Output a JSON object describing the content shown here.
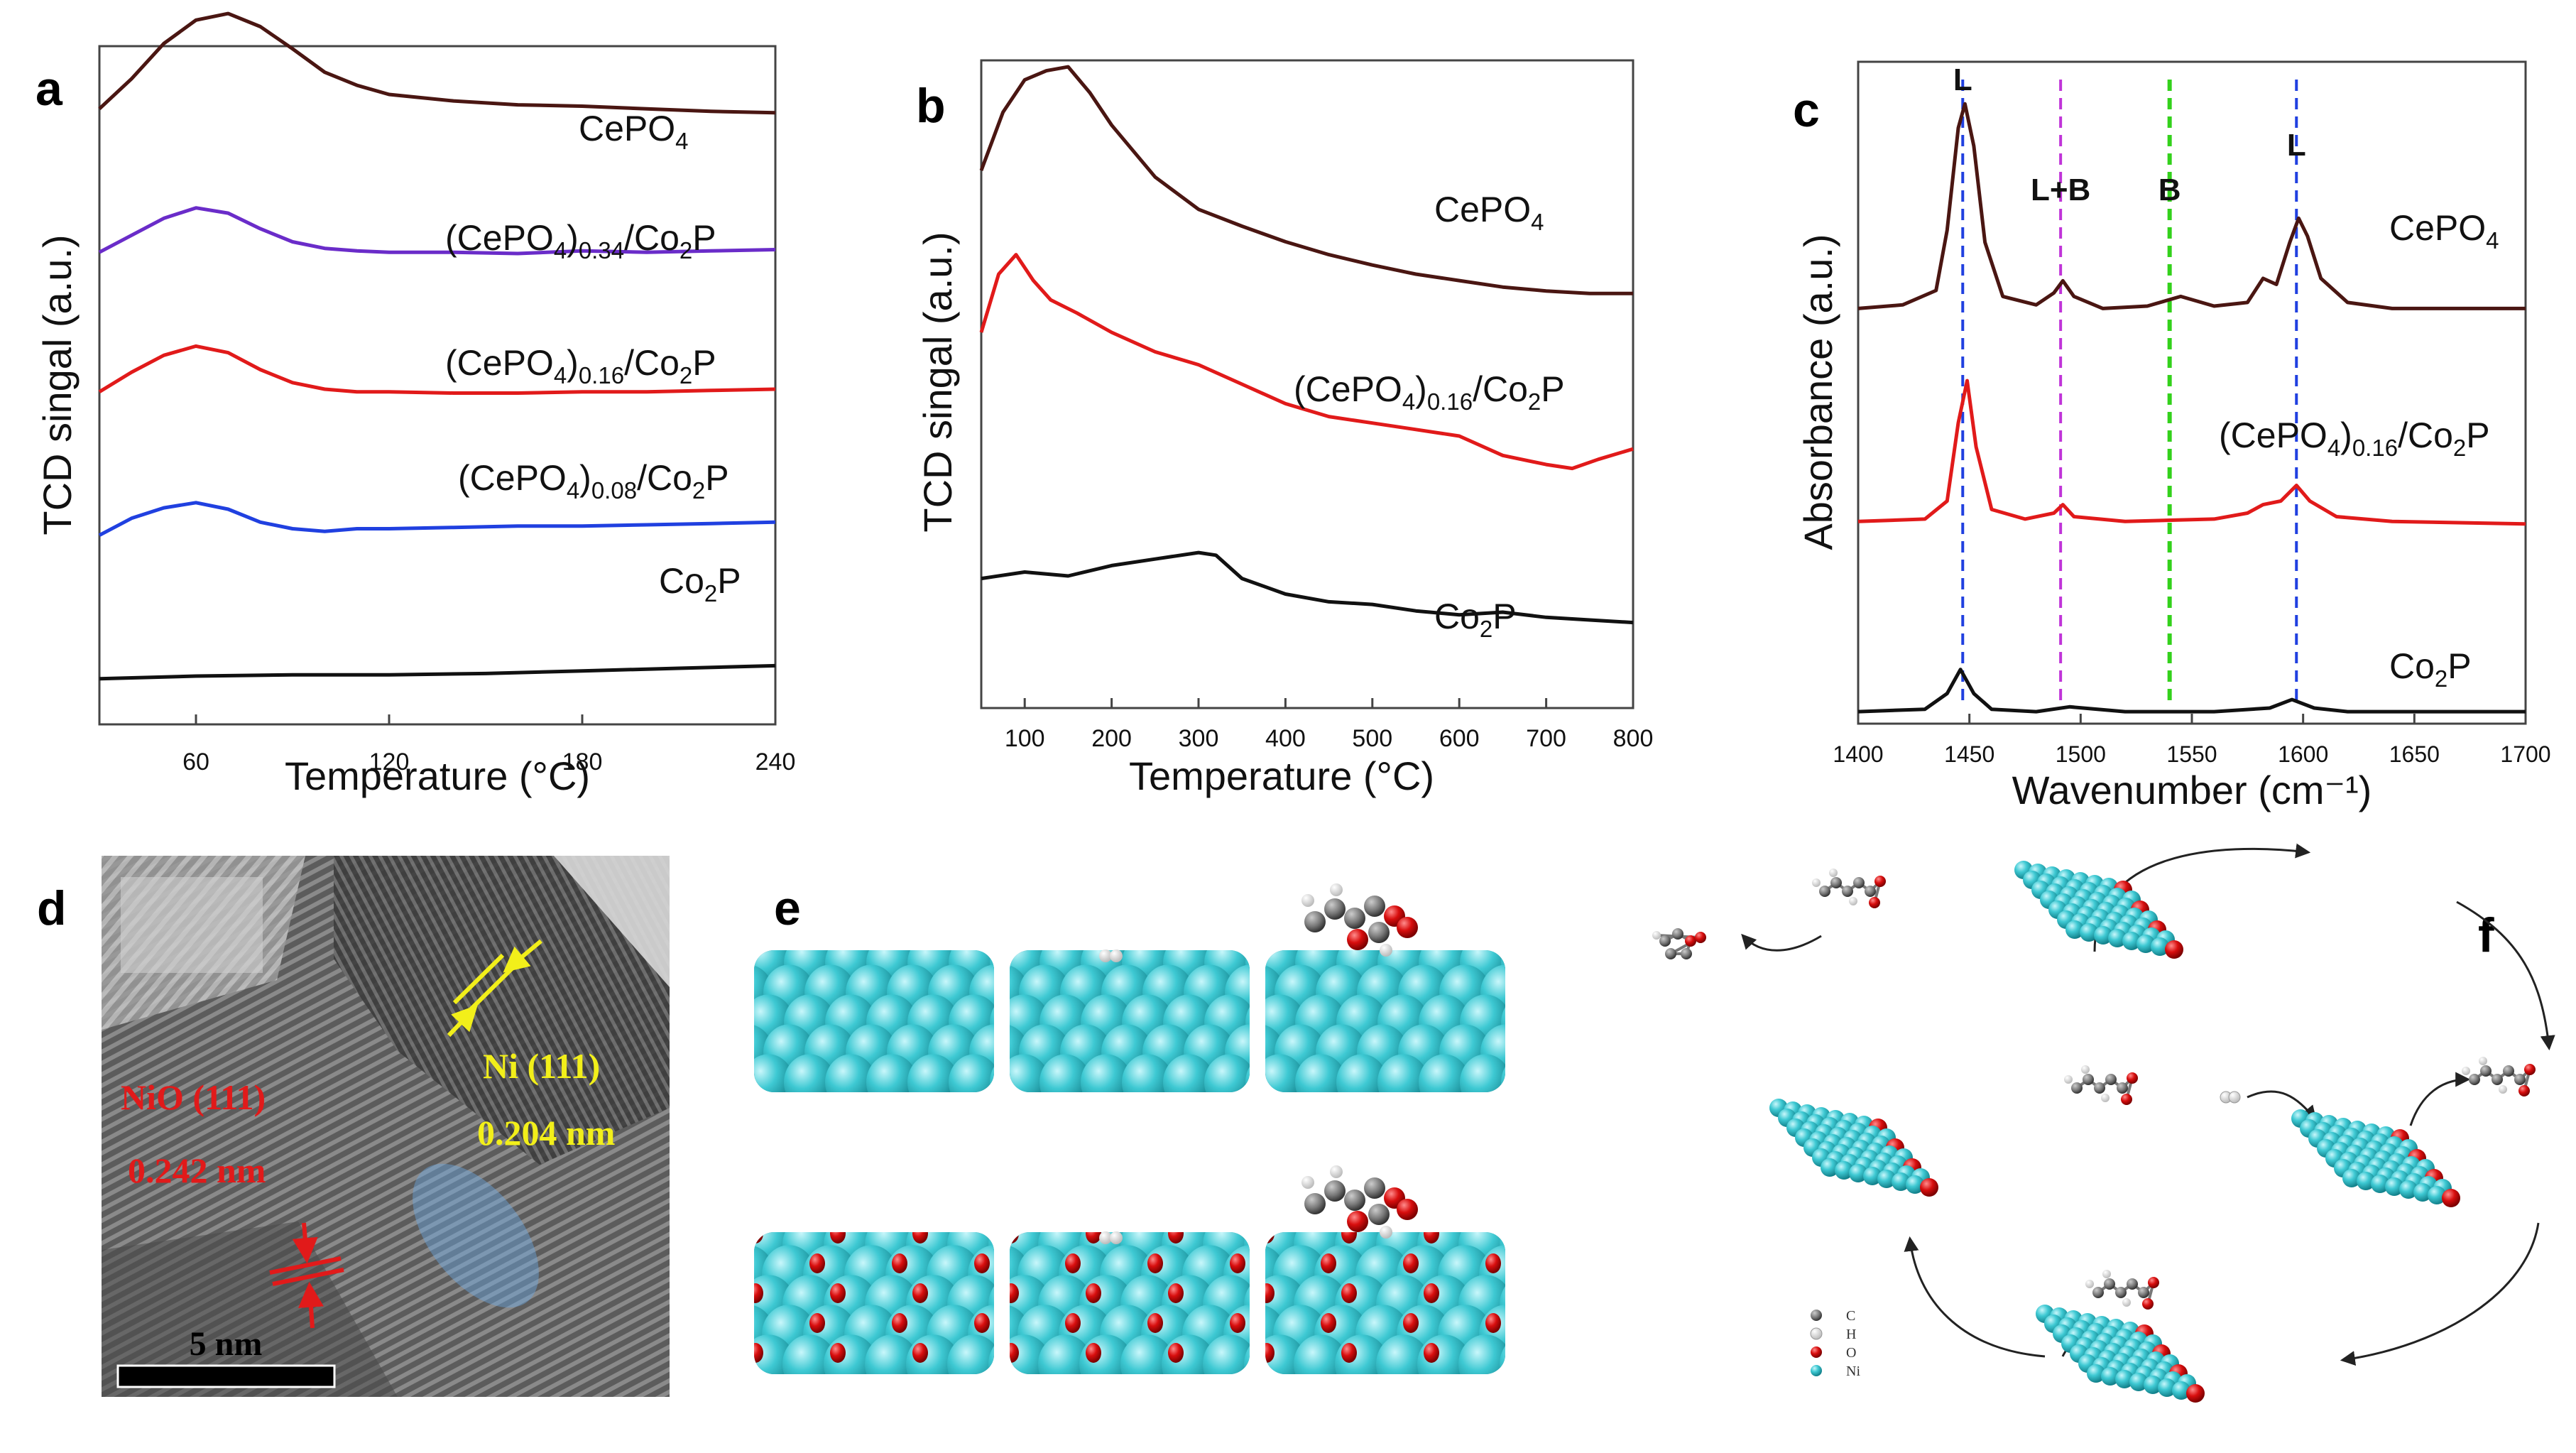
{
  "panel_letters": {
    "a": "a",
    "b": "b",
    "c": "c",
    "d": "d",
    "e": "e",
    "f": "f"
  },
  "colors": {
    "dark_red": "#4a1612",
    "purple": "#6a2cc9",
    "red": "#e11a1a",
    "blue": "#2040e0",
    "black": "#111111",
    "cyan": "#3ec9d3",
    "oxygen": "#d80e0e",
    "yellow": "#f2ef1a",
    "green": "#33d11b",
    "magenta": "#c034d8"
  },
  "chart_data": [
    {
      "id": "a",
      "type": "line",
      "title": "",
      "xlabel": "Temperature (°C)",
      "ylabel": "TCD singal (a.u.)",
      "xlim": [
        30,
        240
      ],
      "ylim": [
        0,
        5.2
      ],
      "xticks": [
        "60",
        "120",
        "180",
        "240"
      ],
      "series": [
        {
          "name": "CePO4",
          "label_main": "CePO",
          "label_sub": "4",
          "label_tail": "",
          "color": "#4a1612",
          "x": [
            30,
            40,
            50,
            60,
            70,
            80,
            90,
            100,
            110,
            120,
            140,
            160,
            180,
            200,
            220,
            240
          ],
          "y": [
            4.72,
            4.95,
            5.22,
            5.4,
            5.45,
            5.35,
            5.18,
            5.0,
            4.9,
            4.83,
            4.78,
            4.75,
            4.74,
            4.72,
            4.7,
            4.69
          ]
        },
        {
          "name": "(CePO4)0.34/Co2P",
          "label_main": "(CePO",
          "label_sub": "4",
          "label_tail": ")",
          "label_sub2": "0.34",
          "label_rest": "/Co",
          "label_sub3": "2",
          "label_end": "P",
          "color": "#6a2cc9",
          "x": [
            30,
            40,
            50,
            60,
            70,
            80,
            90,
            100,
            110,
            120,
            140,
            160,
            180,
            200,
            220,
            240
          ],
          "y": [
            3.62,
            3.75,
            3.88,
            3.96,
            3.92,
            3.8,
            3.7,
            3.65,
            3.63,
            3.62,
            3.62,
            3.61,
            3.63,
            3.62,
            3.63,
            3.64
          ]
        },
        {
          "name": "(CePO4)0.16/Co2P",
          "label_main": "(CePO",
          "label_sub": "4",
          "label_tail": ")",
          "label_sub2": "0.16",
          "label_rest": "/Co",
          "label_sub3": "2",
          "label_end": "P",
          "color": "#e11a1a",
          "x": [
            30,
            40,
            50,
            60,
            70,
            80,
            90,
            100,
            110,
            120,
            140,
            160,
            180,
            200,
            220,
            240
          ],
          "y": [
            2.55,
            2.7,
            2.83,
            2.9,
            2.85,
            2.72,
            2.62,
            2.57,
            2.55,
            2.55,
            2.54,
            2.54,
            2.55,
            2.55,
            2.56,
            2.57
          ]
        },
        {
          "name": "(CePO4)0.08/Co2P",
          "label_main": "(CePO",
          "label_sub": "4",
          "label_tail": ")",
          "label_sub2": "0.08",
          "label_rest": "/Co",
          "label_sub3": "2",
          "label_end": "P",
          "color": "#2040e0",
          "x": [
            30,
            40,
            50,
            60,
            70,
            80,
            90,
            100,
            110,
            120,
            140,
            160,
            180,
            200,
            220,
            240
          ],
          "y": [
            1.45,
            1.58,
            1.66,
            1.7,
            1.65,
            1.55,
            1.5,
            1.48,
            1.5,
            1.5,
            1.51,
            1.52,
            1.52,
            1.53,
            1.54,
            1.55
          ]
        },
        {
          "name": "Co2P",
          "label_main": "Co",
          "label_sub": "2",
          "label_tail": "P",
          "color": "#111111",
          "x": [
            30,
            60,
            90,
            120,
            150,
            180,
            210,
            240
          ],
          "y": [
            0.35,
            0.37,
            0.38,
            0.38,
            0.39,
            0.41,
            0.43,
            0.45
          ]
        }
      ]
    },
    {
      "id": "b",
      "type": "line",
      "title": "",
      "xlabel": "Temperature (°C)",
      "ylabel": "TCD singal (a.u.)",
      "xlim": [
        50,
        800
      ],
      "ylim": [
        0,
        5.0
      ],
      "xticks": [
        "100",
        "200",
        "300",
        "400",
        "500",
        "600",
        "700",
        "800"
      ],
      "series": [
        {
          "name": "CePO4",
          "label_main": "CePO",
          "label_sub": "4",
          "label_tail": "",
          "color": "#4a1612",
          "x": [
            50,
            75,
            100,
            125,
            150,
            175,
            200,
            250,
            300,
            350,
            400,
            450,
            500,
            550,
            600,
            650,
            700,
            750,
            800
          ],
          "y": [
            4.15,
            4.6,
            4.85,
            4.92,
            4.95,
            4.75,
            4.5,
            4.1,
            3.85,
            3.72,
            3.6,
            3.5,
            3.42,
            3.35,
            3.3,
            3.25,
            3.22,
            3.2,
            3.2
          ]
        },
        {
          "name": "(CePO4)0.16/Co2P",
          "label_main": "(CePO",
          "label_sub": "4",
          "label_tail": ")",
          "label_sub2": "0.16",
          "label_rest": "/Co",
          "label_sub3": "2",
          "label_end": "P",
          "color": "#e11a1a",
          "x": [
            50,
            70,
            90,
            110,
            130,
            160,
            200,
            250,
            300,
            350,
            400,
            450,
            500,
            550,
            600,
            650,
            700,
            730,
            760,
            800
          ],
          "y": [
            2.9,
            3.35,
            3.5,
            3.3,
            3.15,
            3.05,
            2.9,
            2.75,
            2.65,
            2.5,
            2.35,
            2.25,
            2.2,
            2.15,
            2.1,
            1.95,
            1.88,
            1.85,
            1.92,
            2.0
          ]
        },
        {
          "name": "Co2P",
          "label_main": "Co",
          "label_sub": "2",
          "label_tail": "P",
          "color": "#111111",
          "x": [
            50,
            100,
            150,
            200,
            250,
            300,
            320,
            350,
            400,
            450,
            500,
            550,
            600,
            650,
            700,
            750,
            800
          ],
          "y": [
            1.0,
            1.05,
            1.02,
            1.1,
            1.15,
            1.2,
            1.18,
            1.0,
            0.88,
            0.82,
            0.8,
            0.75,
            0.72,
            0.74,
            0.7,
            0.68,
            0.66
          ]
        }
      ]
    },
    {
      "id": "c",
      "type": "line",
      "title": "",
      "xlabel": "Wavenumber (cm⁻¹)",
      "ylabel": "Absorbance (a.u.)",
      "xlim": [
        1400,
        1700
      ],
      "ylim": [
        0,
        5.5
      ],
      "xticks": [
        "1400",
        "1450",
        "1500",
        "1550",
        "1600",
        "1650",
        "1700"
      ],
      "vlines": [
        {
          "x": 1447,
          "color": "#2040e0",
          "label": "L"
        },
        {
          "x": 1491,
          "color": "#c034d8",
          "label": "L+B"
        },
        {
          "x": 1540,
          "color": "#33d11b",
          "label": "B"
        },
        {
          "x": 1597,
          "color": "#2040e0",
          "label": "L"
        }
      ],
      "series": [
        {
          "name": "CePO4",
          "label_main": "CePO",
          "label_sub": "4",
          "label_tail": "",
          "color": "#4a1612",
          "x": [
            1400,
            1420,
            1435,
            1440,
            1445,
            1448,
            1452,
            1457,
            1465,
            1480,
            1488,
            1492,
            1497,
            1510,
            1530,
            1545,
            1560,
            1575,
            1582,
            1588,
            1594,
            1598,
            1602,
            1608,
            1620,
            1640,
            1700
          ],
          "y": [
            3.45,
            3.48,
            3.6,
            4.1,
            4.95,
            5.15,
            4.8,
            4.0,
            3.55,
            3.48,
            3.58,
            3.68,
            3.55,
            3.45,
            3.47,
            3.55,
            3.47,
            3.5,
            3.7,
            3.65,
            4.0,
            4.2,
            4.05,
            3.7,
            3.5,
            3.45,
            3.45
          ]
        },
        {
          "name": "(CePO4)0.16/Co2P",
          "label_main": "(CePO",
          "label_sub": "4",
          "label_tail": ")",
          "label_sub2": "0.16",
          "label_rest": "/Co",
          "label_sub3": "2",
          "label_end": "P",
          "color": "#e11a1a",
          "x": [
            1400,
            1430,
            1440,
            1445,
            1449,
            1453,
            1460,
            1475,
            1488,
            1492,
            1497,
            1520,
            1560,
            1575,
            1582,
            1590,
            1597,
            1603,
            1615,
            1640,
            1700
          ],
          "y": [
            1.68,
            1.7,
            1.85,
            2.5,
            2.85,
            2.3,
            1.78,
            1.7,
            1.75,
            1.82,
            1.72,
            1.68,
            1.7,
            1.75,
            1.82,
            1.85,
            1.98,
            1.85,
            1.72,
            1.68,
            1.66
          ]
        },
        {
          "name": "Co2P",
          "label_main": "Co",
          "label_sub": "2",
          "label_tail": "P",
          "color": "#111111",
          "x": [
            1400,
            1430,
            1440,
            1446,
            1452,
            1460,
            1480,
            1495,
            1520,
            1560,
            1585,
            1595,
            1605,
            1620,
            1650,
            1700
          ],
          "y": [
            0.1,
            0.12,
            0.25,
            0.45,
            0.25,
            0.12,
            0.1,
            0.14,
            0.1,
            0.1,
            0.13,
            0.2,
            0.13,
            0.1,
            0.1,
            0.1
          ]
        }
      ]
    }
  ],
  "panel_d": {
    "ni_label": "Ni (111)",
    "ni_spacing": "0.204 nm",
    "nio_label": "NiO (111)",
    "nio_spacing": "0.242 nm",
    "scale_bar": "5 nm"
  },
  "panel_f": {
    "legend": [
      {
        "symbol": "C",
        "color": "#777777"
      },
      {
        "symbol": "H",
        "color": "#dddddd"
      },
      {
        "symbol": "O",
        "color": "#d80e0e"
      },
      {
        "symbol": "Ni",
        "color": "#3ec9d3"
      }
    ]
  }
}
